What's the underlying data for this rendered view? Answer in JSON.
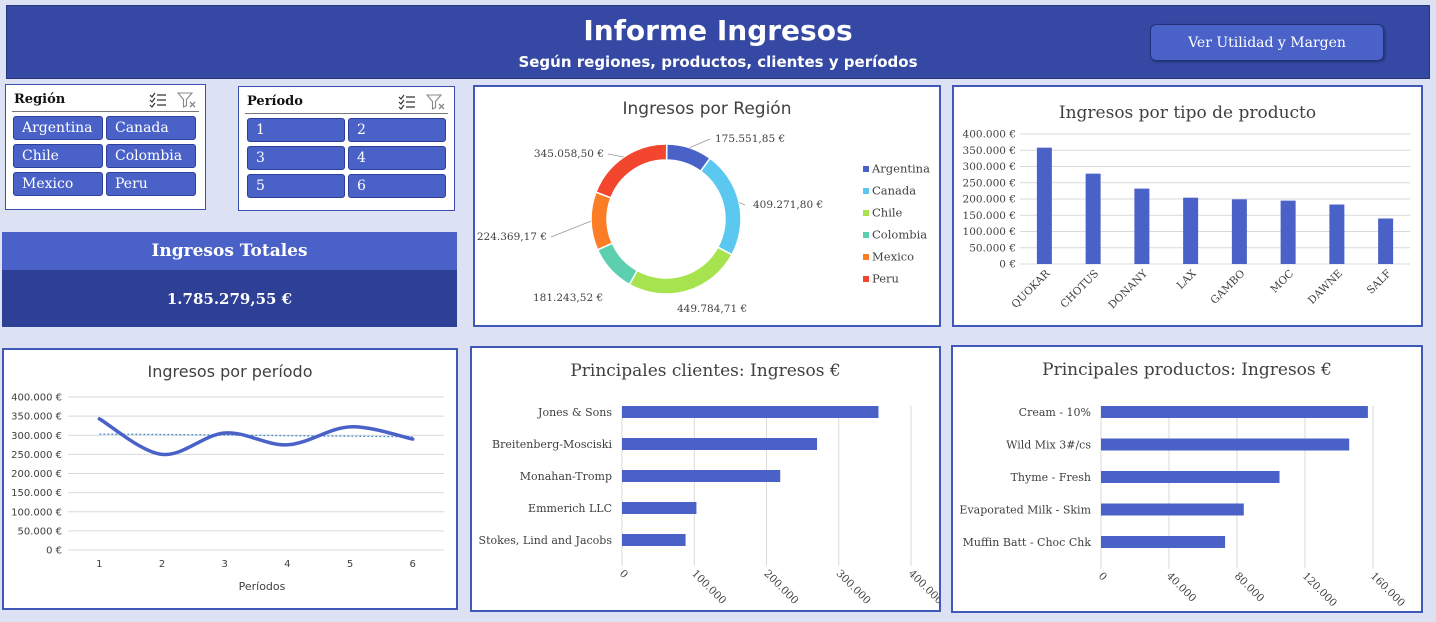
{
  "header": {
    "title": "Informe Ingresos",
    "subtitle": "Según regiones, productos, clientes y períodos",
    "button_label": "Ver Utilidad y Margen"
  },
  "slicers": {
    "region": {
      "label": "Región",
      "items": [
        "Argentina",
        "Canada",
        "Chile",
        "Colombia",
        "Mexico",
        "Peru"
      ],
      "icons": [
        "multi-select-icon",
        "clear-filter-icon"
      ]
    },
    "periodo": {
      "label": "Período",
      "items": [
        "1",
        "2",
        "3",
        "4",
        "5",
        "6"
      ],
      "icons": [
        "multi-select-icon",
        "clear-filter-icon"
      ]
    }
  },
  "total": {
    "label": "Ingresos Totales",
    "value": "1.785.279,55 €"
  },
  "colors": {
    "accent": "#4a62c8",
    "dark": "#2e3f96",
    "header": "#3549a4",
    "bar": "#4a62c8"
  },
  "chart_data": [
    {
      "id": "region",
      "type": "pie",
      "title": "Ingresos por Región",
      "donut": true,
      "legend": "right",
      "categories": [
        "Argentina",
        "Canada",
        "Chile",
        "Colombia",
        "Mexico",
        "Peru"
      ],
      "values": [
        175551.85,
        409271.8,
        449784.71,
        181243.52,
        224369.17,
        345058.5
      ],
      "labels": [
        "175.551,85 €",
        "409.271,80 €",
        "449.784,71 €",
        "181.243,52 €",
        "224.369,17 €",
        "345.058,50 €"
      ],
      "colors": [
        "#4a62c8",
        "#5bc8f0",
        "#a6e34f",
        "#5ccfb0",
        "#fb7d25",
        "#f2462e"
      ]
    },
    {
      "id": "producto",
      "type": "bar",
      "title": "Ingresos por tipo de producto",
      "categories": [
        "QUOKAR",
        "CHOTUS",
        "DONANY",
        "LAX",
        "GAMBO",
        "MOC",
        "DAWNE",
        "SALF"
      ],
      "values": [
        358000,
        278000,
        232000,
        204000,
        199000,
        195000,
        183000,
        140000
      ],
      "ylim": [
        0,
        400000
      ],
      "yticks": [
        "0 €",
        "50.000 €",
        "100.000 €",
        "150.000 €",
        "200.000 €",
        "250.000 €",
        "300.000 €",
        "350.000 €",
        "400.000 €"
      ],
      "grid": true
    },
    {
      "id": "periodo",
      "type": "line",
      "title": "Ingresos por período",
      "xlabel": "Períodos",
      "x": [
        "1",
        "2",
        "3",
        "4",
        "5",
        "6"
      ],
      "values": [
        343000,
        250000,
        306000,
        275000,
        322000,
        290000
      ],
      "trend": [
        303000,
        302000,
        300500,
        299000,
        297500,
        296000
      ],
      "ylim": [
        0,
        400000
      ],
      "yticks": [
        "0 €",
        "50.000 €",
        "100.000 €",
        "150.000 €",
        "200.000 €",
        "250.000 €",
        "300.000 €",
        "350.000 €",
        "400.000 €"
      ],
      "grid": true
    },
    {
      "id": "clientes",
      "type": "bar",
      "orientation": "horizontal",
      "title": "Principales clientes: Ingresos €",
      "categories": [
        "Jones & Sons",
        "Breitenberg-Mosciski",
        "Monahan-Tromp",
        "Emmerich LLC",
        "Stokes, Lind and Jacobs"
      ],
      "values": [
        355000,
        270000,
        219000,
        103000,
        88000
      ],
      "xlim": [
        0,
        400000
      ],
      "xticks": [
        "0",
        "100.000",
        "200.000",
        "300.000",
        "400.000"
      ],
      "grid": true
    },
    {
      "id": "productos",
      "type": "bar",
      "orientation": "horizontal",
      "title": "Principales productos: Ingresos €",
      "categories": [
        "Cream - 10%",
        "Wild Mix 3#/cs",
        "Thyme - Fresh",
        "Evaporated Milk - Skim",
        "Muffin Batt - Choc Chk"
      ],
      "values": [
        157000,
        146000,
        105000,
        84000,
        73000
      ],
      "xlim": [
        0,
        160000
      ],
      "xticks": [
        "0",
        "40.000",
        "80.000",
        "120.000",
        "160.000"
      ],
      "grid": true
    }
  ]
}
